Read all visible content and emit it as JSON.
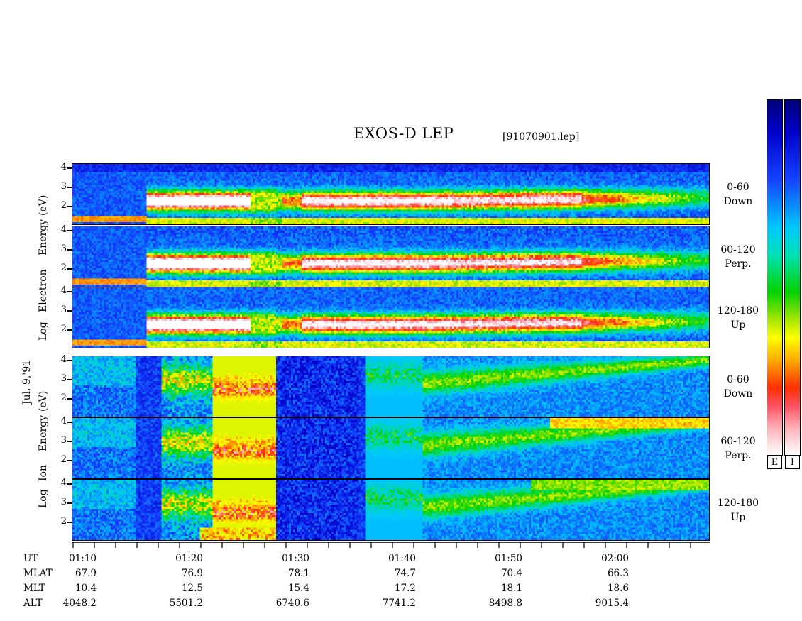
{
  "title": "EXOS-D LEP",
  "file_label": "[91070901.lep]",
  "colorbar_labels": [
    "E",
    "I"
  ],
  "chart_data": {
    "type": "heatmap",
    "date_label": "Jul. 9,'91",
    "y_ticks": [
      "4",
      "3",
      "2"
    ],
    "electron_ylabel": [
      "Log",
      "Electron",
      "Energy"
    ],
    "electron_ylabel_unit": "(eV)",
    "ion_ylabel": [
      "Log",
      "Ion",
      "Energy"
    ],
    "ion_ylabel_unit": "(eV)",
    "panels": [
      {
        "species": "Electron",
        "angle": "0-60",
        "direction": "Down"
      },
      {
        "species": "Electron",
        "angle": "60-120",
        "direction": "Perp."
      },
      {
        "species": "Electron",
        "angle": "120-180",
        "direction": "Up"
      },
      {
        "species": "Ion",
        "angle": "0-60",
        "direction": "Down"
      },
      {
        "species": "Ion",
        "angle": "60-120",
        "direction": "Perp."
      },
      {
        "species": "Ion",
        "angle": "120-180",
        "direction": "Up"
      }
    ],
    "rows": {
      "UT": [
        "01:10",
        "01:20",
        "01:30",
        "01:40",
        "01:50",
        "02:00"
      ],
      "MLAT": [
        "67.9",
        "76.9",
        "78.1",
        "74.7",
        "70.4",
        "66.3"
      ],
      "MLT": [
        "10.4",
        "12.5",
        "15.4",
        "17.2",
        "18.1",
        "18.6"
      ],
      "ALT": [
        "4048.2",
        "5501.2",
        "6740.6",
        "7741.2",
        "8498.8",
        "9015.4"
      ]
    },
    "row_labels": [
      "UT",
      "MLAT",
      "MLT",
      "ALT"
    ]
  }
}
